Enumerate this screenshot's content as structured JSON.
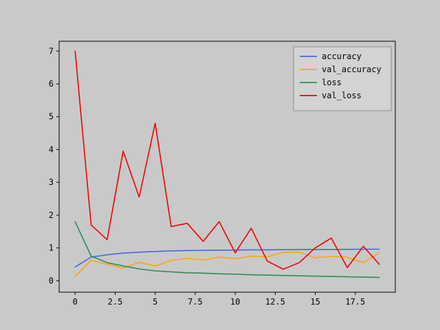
{
  "figure": {
    "background": "#c9c9c9",
    "frame_color": "#000000",
    "tick_color": "#000000"
  },
  "chart_data": {
    "type": "line",
    "title": "",
    "xlabel": "",
    "ylabel": "",
    "grid": false,
    "xlim": [
      -1,
      20
    ],
    "ylim": [
      -0.35,
      7.3
    ],
    "x_ticks": [
      0,
      2.5,
      5,
      7.5,
      10,
      12.5,
      15,
      17.5
    ],
    "x_tick_labels": [
      "0",
      "2.5",
      "5",
      "7.5",
      "10",
      "12.5",
      "15",
      "17.5"
    ],
    "y_ticks": [
      0,
      1,
      2,
      3,
      4,
      5,
      6,
      7
    ],
    "y_tick_labels": [
      "0",
      "1",
      "2",
      "3",
      "4",
      "5",
      "6",
      "7"
    ],
    "x": [
      0,
      1,
      2,
      3,
      4,
      5,
      6,
      7,
      8,
      9,
      10,
      11,
      12,
      13,
      14,
      15,
      16,
      17,
      18,
      19
    ],
    "series": [
      {
        "name": "accuracy",
        "color": "#4169e1",
        "values": [
          0.42,
          0.72,
          0.79,
          0.84,
          0.87,
          0.89,
          0.91,
          0.92,
          0.925,
          0.93,
          0.935,
          0.94,
          0.94,
          0.945,
          0.95,
          0.95,
          0.95,
          0.955,
          0.96,
          0.96
        ]
      },
      {
        "name": "val_accuracy",
        "color": "#ffa500",
        "values": [
          0.13,
          0.62,
          0.5,
          0.38,
          0.56,
          0.45,
          0.62,
          0.68,
          0.63,
          0.72,
          0.67,
          0.75,
          0.73,
          0.87,
          0.87,
          0.7,
          0.74,
          0.72,
          0.55,
          0.85
        ]
      },
      {
        "name": "loss",
        "color": "#2e8b57",
        "values": [
          1.8,
          0.75,
          0.55,
          0.45,
          0.36,
          0.3,
          0.27,
          0.24,
          0.23,
          0.21,
          0.2,
          0.18,
          0.17,
          0.16,
          0.15,
          0.14,
          0.13,
          0.12,
          0.11,
          0.1
        ]
      },
      {
        "name": "val_loss",
        "color": "#ee0000",
        "values": [
          7.0,
          1.7,
          1.25,
          3.95,
          2.55,
          4.8,
          1.65,
          1.75,
          1.2,
          1.8,
          0.85,
          1.6,
          0.6,
          0.35,
          0.55,
          1.0,
          1.3,
          0.4,
          1.05,
          0.5
        ]
      }
    ],
    "legend": {
      "position": "upper right",
      "entries": [
        "accuracy",
        "val_accuracy",
        "loss",
        "val_loss"
      ],
      "facecolor": "#d3d3d3",
      "edgecolor": "#8e8e8e"
    }
  }
}
